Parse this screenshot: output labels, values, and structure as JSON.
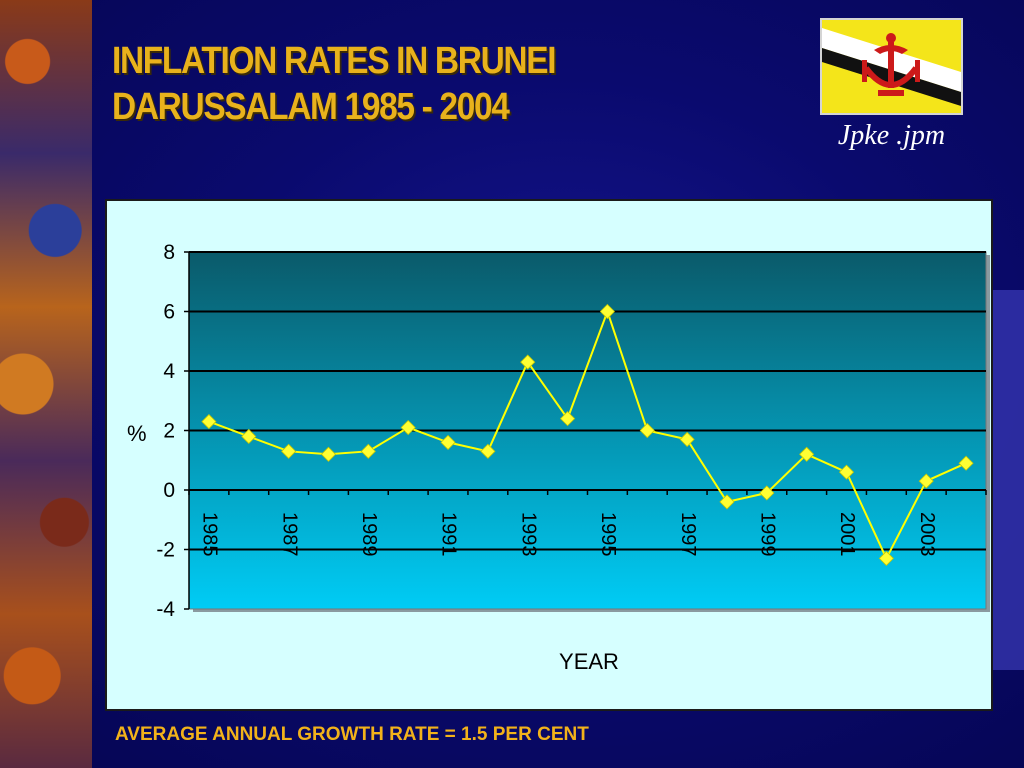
{
  "slide": {
    "title_line1": "INFLATION RATES IN BRUNEI",
    "title_line2": "DARUSSALAM 1985 - 2004",
    "file_label": "Jpke .jpm",
    "footer": "AVERAGE ANNUAL GROWTH RATE = 1.5 PER CENT"
  },
  "colors": {
    "title": "#e8b21c",
    "line": "#ffff00",
    "marker": "#ffff33",
    "plot_top": "#0a5a6a",
    "plot_bottom": "#00ccf5",
    "chart_background": "#d6ffff"
  },
  "chart_data": {
    "type": "line",
    "title": "",
    "xlabel": "YEAR",
    "ylabel": "%",
    "x": [
      1985,
      1986,
      1987,
      1988,
      1989,
      1990,
      1991,
      1992,
      1993,
      1994,
      1995,
      1996,
      1997,
      1998,
      1999,
      2000,
      2001,
      2002,
      2003,
      2004
    ],
    "x_tick_labels": [
      "1985",
      "1987",
      "1989",
      "1991",
      "1993",
      "1995",
      "1997",
      "1999",
      "2001",
      "2003"
    ],
    "series": [
      {
        "values": [
          2.3,
          1.8,
          1.3,
          1.2,
          1.3,
          2.1,
          1.6,
          1.3,
          4.3,
          2.4,
          6.0,
          2.0,
          1.7,
          -0.4,
          -0.1,
          1.2,
          0.6,
          -2.3,
          0.3,
          0.9
        ]
      }
    ],
    "ylim": [
      -4,
      8
    ],
    "y_ticks": [
      8,
      6,
      4,
      2,
      0,
      -2,
      -4
    ],
    "grid": true,
    "legend": "none"
  }
}
